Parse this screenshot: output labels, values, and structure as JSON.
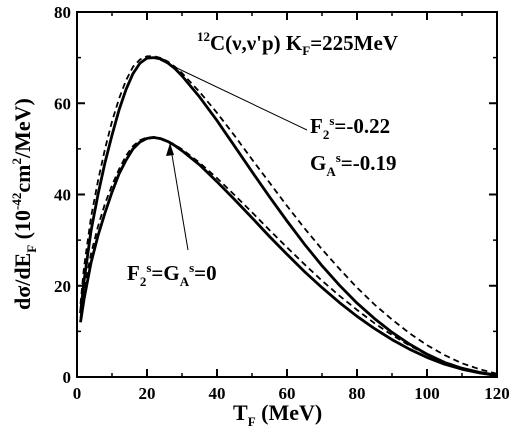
{
  "chart_data": {
    "type": "line",
    "x_label": {
      "base": "T",
      "sub": "F",
      "rest": " (MeV)"
    },
    "y_label": {
      "p1": "dσ/dE",
      "sub1": "F",
      "p2": " (10",
      "sup1": "-42",
      "p3": "cm",
      "sup2": "2",
      "p4": "/MeV)"
    },
    "x_ticks": [
      "0",
      "20",
      "40",
      "60",
      "80",
      "100",
      "120"
    ],
    "y_ticks": [
      "0",
      "20",
      "40",
      "60",
      "80"
    ],
    "xlim": [
      0,
      120
    ],
    "ylim": [
      0,
      80
    ],
    "title": {
      "sup": "12",
      "text": "C(ν,ν'p) K",
      "sub": "F",
      "tail": "=225MeV"
    },
    "annotations": {
      "upper": {
        "l1_base": "F",
        "l1_sub": "2",
        "l1_sup": "s",
        "l1_val": "=-0.22",
        "l2_base": "G",
        "l2_sub": "A",
        "l2_sup": "s",
        "l2_val": "=-0.19"
      },
      "lower": {
        "a": "F",
        "a_sub": "2",
        "a_sup": "s",
        "eq1": "=G",
        "b_sub": "A",
        "b_sup": "s",
        "eq2": "=0"
      }
    },
    "series": [
      {
        "style": "solid",
        "x": [
          1,
          2,
          4,
          6,
          8,
          10,
          12,
          14,
          16,
          18,
          20,
          22,
          24,
          26,
          28,
          30,
          35,
          40,
          45,
          50,
          55,
          60,
          65,
          70,
          75,
          80,
          85,
          90,
          95,
          100,
          105,
          110,
          115,
          120
        ],
        "y": [
          14,
          21,
          32,
          40,
          47,
          53,
          58.5,
          63,
          66.5,
          68.8,
          69.9,
          70.0,
          69.7,
          68.8,
          67.6,
          66.0,
          61.4,
          56.2,
          50.6,
          45.0,
          39.5,
          34.2,
          29.1,
          24.4,
          20.1,
          16.2,
          12.8,
          9.8,
          7.2,
          5.0,
          3.2,
          1.9,
          1.0,
          0.4
        ]
      },
      {
        "style": "dashed",
        "x": [
          1,
          2,
          4,
          6,
          8,
          10,
          12,
          14,
          16,
          18,
          20,
          22,
          24,
          26,
          28,
          30,
          35,
          40,
          45,
          50,
          55,
          60,
          65,
          70,
          75,
          80,
          85,
          90,
          95,
          100,
          105,
          110,
          115,
          120
        ],
        "y": [
          16,
          24,
          35,
          43,
          50,
          56,
          61,
          65,
          68,
          69.6,
          70.3,
          70.3,
          69.9,
          69.1,
          68.0,
          66.6,
          62.5,
          57.9,
          52.9,
          47.7,
          42.6,
          37.5,
          32.6,
          28.0,
          23.7,
          19.6,
          15.9,
          12.6,
          9.6,
          7.0,
          4.8,
          3.0,
          1.7,
          0.7
        ]
      },
      {
        "style": "solid",
        "x": [
          1,
          2,
          4,
          6,
          8,
          10,
          12,
          14,
          16,
          18,
          20,
          22,
          24,
          26,
          28,
          30,
          35,
          40,
          45,
          50,
          55,
          60,
          65,
          70,
          75,
          80,
          85,
          90,
          95,
          100,
          105,
          110,
          115,
          120
        ],
        "y": [
          12,
          17,
          25,
          31,
          36,
          40.5,
          44.5,
          47.5,
          50,
          51.5,
          52.3,
          52.5,
          52.2,
          51.6,
          50.7,
          49.6,
          46.5,
          42.8,
          38.9,
          34.9,
          30.8,
          26.9,
          23.1,
          19.6,
          16.3,
          13.3,
          10.6,
          8.2,
          6.1,
          4.3,
          2.8,
          1.7,
          0.9,
          0.3
        ]
      },
      {
        "style": "dashed",
        "x": [
          1,
          2,
          4,
          6,
          8,
          10,
          12,
          14,
          16,
          18,
          20,
          22,
          24,
          26,
          28,
          30,
          35,
          40,
          45,
          50,
          55,
          60,
          65,
          70,
          75,
          80,
          85,
          90,
          95,
          100,
          105,
          110,
          115,
          120
        ],
        "y": [
          13,
          19,
          27,
          33,
          38,
          42,
          45.5,
          48.5,
          50.6,
          51.9,
          52.5,
          52.6,
          52.3,
          51.7,
          50.9,
          49.9,
          47.0,
          43.6,
          39.9,
          36.1,
          32.2,
          28.4,
          24.7,
          21.1,
          17.8,
          14.7,
          11.8,
          9.2,
          6.9,
          4.9,
          3.3,
          2.0,
          1.0,
          0.4
        ]
      }
    ]
  }
}
